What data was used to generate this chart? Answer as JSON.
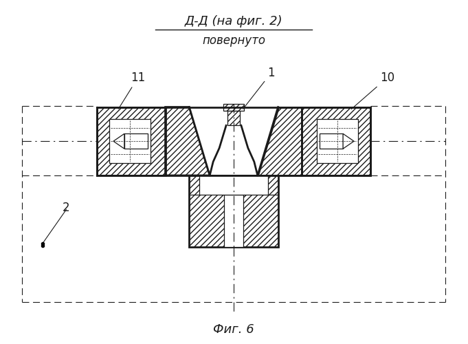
{
  "title_line1": "Д-Д (на фиг. 2)",
  "title_line2": "повернуто",
  "fig_label": "Фиг. 6",
  "bg_color": "#ffffff",
  "line_color": "#1a1a1a"
}
